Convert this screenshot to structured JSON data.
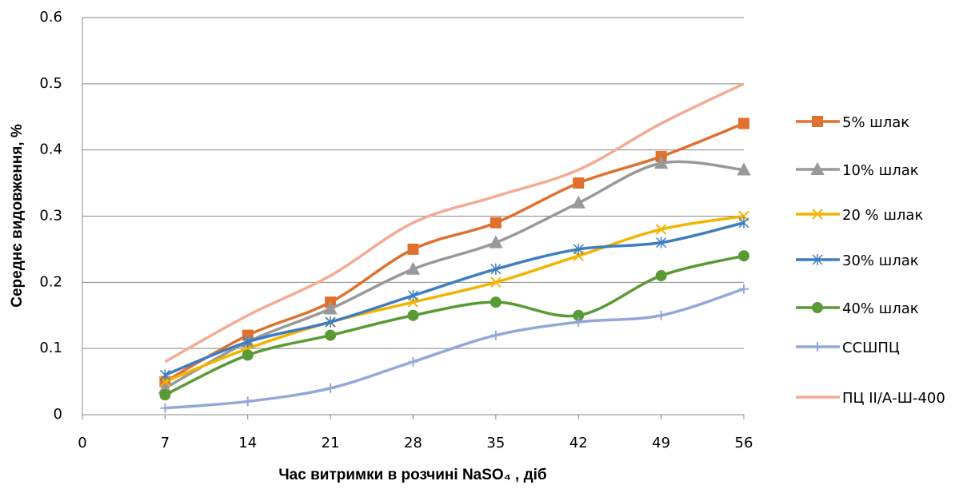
{
  "chart_data": {
    "type": "line",
    "x_label": "Час витримки в розчині NaSO₄ , діб",
    "y_label": "Середнє видовження, %",
    "x": [
      7,
      14,
      21,
      28,
      35,
      42,
      49,
      56
    ],
    "xlim": [
      0,
      56
    ],
    "xticks": [
      0,
      7,
      14,
      21,
      28,
      35,
      42,
      49,
      56
    ],
    "ylim": [
      0,
      0.6
    ],
    "yticks": [
      0,
      0.1,
      0.2,
      0.3,
      0.4,
      0.5,
      0.6
    ],
    "grid": true,
    "legend": "right",
    "series": [
      {
        "name": "5% шлак",
        "color": "#e0702e",
        "marker": "square",
        "values": [
          0.05,
          0.12,
          0.17,
          0.25,
          0.29,
          0.35,
          0.39,
          0.44
        ]
      },
      {
        "name": "10% шлак",
        "color": "#999999",
        "marker": "triangle",
        "values": [
          0.04,
          0.11,
          0.16,
          0.22,
          0.26,
          0.32,
          0.38,
          0.37
        ]
      },
      {
        "name": "20 % шлак",
        "color": "#f2b400",
        "marker": "x",
        "values": [
          0.05,
          0.1,
          0.14,
          0.17,
          0.2,
          0.24,
          0.28,
          0.3
        ]
      },
      {
        "name": "30% шлак",
        "color": "#3d7dc0",
        "marker": "star",
        "values": [
          0.06,
          0.11,
          0.14,
          0.18,
          0.22,
          0.25,
          0.26,
          0.29
        ]
      },
      {
        "name": "40% шлак",
        "color": "#5a9a35",
        "marker": "circle",
        "values": [
          0.03,
          0.09,
          0.12,
          0.15,
          0.17,
          0.15,
          0.21,
          0.24
        ]
      },
      {
        "name": "ССШПЦ",
        "color": "#92a8da",
        "marker": "plus",
        "values": [
          0.01,
          0.02,
          0.04,
          0.08,
          0.12,
          0.14,
          0.15,
          0.19
        ]
      },
      {
        "name": "ПЦ ІІ/А-Ш-400",
        "color": "#f4ab94",
        "marker": "none",
        "values": [
          0.08,
          0.15,
          0.21,
          0.29,
          0.33,
          0.37,
          0.44,
          0.5
        ]
      }
    ]
  }
}
